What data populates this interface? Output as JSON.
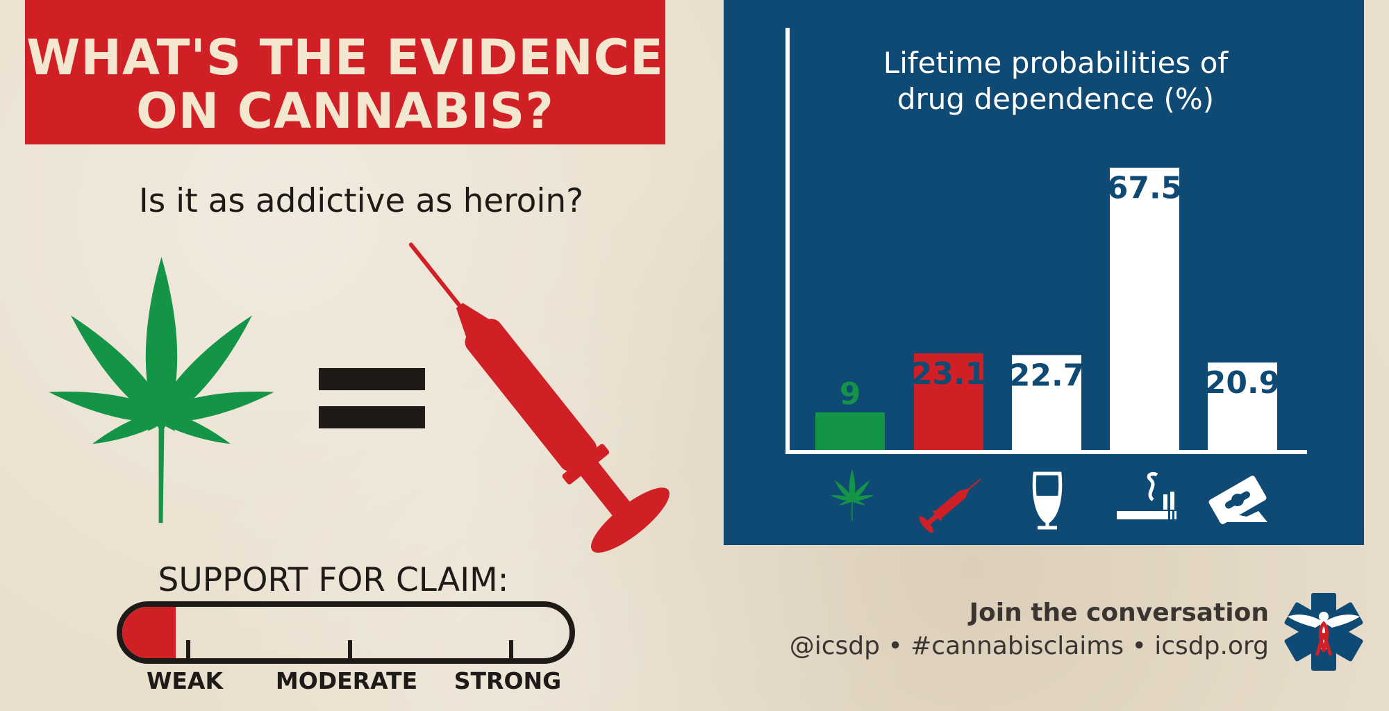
{
  "header": {
    "title_line1": "WHAT'S THE EVIDENCE",
    "title_line2": "ON CANNABIS?"
  },
  "question": "Is it as addictive as heroin?",
  "support": {
    "title": "SUPPORT FOR CLAIM:",
    "level_fraction": 0.12,
    "labels": [
      "WEAK",
      "MODERATE",
      "STRONG"
    ]
  },
  "footer": {
    "join": "Join the conversation",
    "handles": "@icsdp • #cannabisclaims • icsdp.org"
  },
  "colors": {
    "red": "#d11f26",
    "green": "#139447",
    "navy": "#0f4a75",
    "white": "#ffffff",
    "cream": "#f3e8cf"
  },
  "chart_data": {
    "type": "bar",
    "title_line1": "Lifetime probabilities of",
    "title_line2": "drug dependence (%)",
    "categories": [
      "cannabis-icon",
      "heroin-syringe-icon",
      "alcohol-wine-glass-icon",
      "tobacco-cigarette-icon",
      "cocaine-razor-icon"
    ],
    "values": [
      9,
      23.1,
      22.7,
      67.5,
      20.9
    ],
    "value_labels": [
      "9",
      "23.1",
      "22.7",
      "67.5",
      "20.9"
    ],
    "bar_colors": [
      "#139447",
      "#d11f26",
      "#ffffff",
      "#ffffff",
      "#ffffff"
    ],
    "label_colors": [
      "#139447",
      "#0f4a75",
      "#0f4a75",
      "#0f4a75",
      "#0f4a75"
    ],
    "label_inside": [
      false,
      true,
      true,
      true,
      true
    ],
    "ylim": [
      0,
      100
    ],
    "grid": false
  }
}
